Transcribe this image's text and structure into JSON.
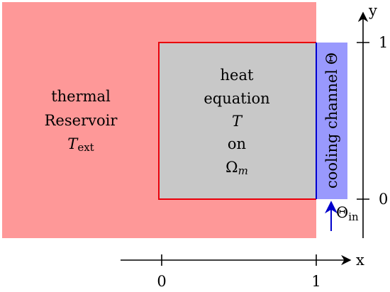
{
  "reservoir": {
    "line1": "thermal",
    "line2": "Reservoir",
    "symbol": "T",
    "symbol_subscript": "ext",
    "color": "#fe9898"
  },
  "domain": {
    "line1": "heat",
    "line2": "equation",
    "symbol": "T",
    "line4": "on",
    "region_symbol": "Ω",
    "region_subscript": "m",
    "fill_color": "#c8c8c8",
    "border_color": "#e8000b"
  },
  "channel": {
    "label": "cooling channel Θ",
    "fill_color": "#9999fd",
    "edge_color": "#0000d0"
  },
  "inflow": {
    "symbol": "Θ",
    "subscript": "in",
    "arrow_color": "#0000cc"
  },
  "x_axis": {
    "label": "x",
    "ticks": [
      "0",
      "1"
    ]
  },
  "y_axis": {
    "label": "y",
    "ticks": [
      "0",
      "1"
    ]
  }
}
